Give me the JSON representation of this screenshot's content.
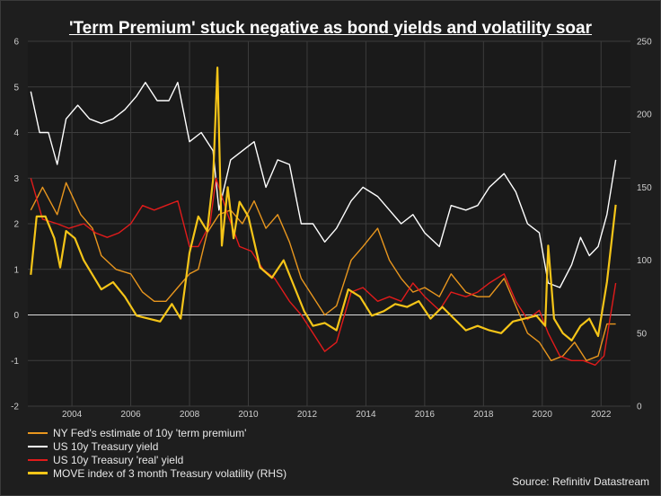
{
  "chart_data": {
    "type": "line",
    "title": "'Term Premium' stuck negative as bond yields and volatility soar",
    "xlim": [
      2002.5,
      2023.0
    ],
    "ylim_left": [
      -2,
      6
    ],
    "ylim_right": [
      0,
      250
    ],
    "x_ticks": [
      "2004",
      "2006",
      "2008",
      "2010",
      "2012",
      "2014",
      "2016",
      "2018",
      "2020",
      "2022"
    ],
    "y_ticks_left": [
      "-2",
      "-1",
      "0",
      "1",
      "2",
      "3",
      "4",
      "5",
      "6"
    ],
    "y_ticks_right": [
      "0",
      "50",
      "100",
      "150",
      "200",
      "250"
    ],
    "colors": {
      "background": "#1e1e1e",
      "plot": "#1a1a1a",
      "grid": "#3c3c3c",
      "zero": "#dcdcdc"
    },
    "series": [
      {
        "name": "NY Fed's estimate of 10y 'term premium'",
        "color": "#e8961e",
        "axis": "left",
        "x": [
          2002.6,
          2003.0,
          2003.5,
          2003.8,
          2004.3,
          2004.7,
          2005.0,
          2005.5,
          2006.0,
          2006.4,
          2006.8,
          2007.2,
          2007.6,
          2008.0,
          2008.3,
          2008.6,
          2009.0,
          2009.4,
          2009.8,
          2010.2,
          2010.6,
          2011.0,
          2011.4,
          2011.8,
          2012.2,
          2012.6,
          2013.0,
          2013.5,
          2013.9,
          2014.4,
          2014.8,
          2015.2,
          2015.6,
          2016.0,
          2016.5,
          2016.9,
          2017.4,
          2017.8,
          2018.2,
          2018.7,
          2019.1,
          2019.5,
          2019.9,
          2020.3,
          2020.7,
          2021.1,
          2021.5,
          2021.9,
          2022.2,
          2022.5
        ],
        "values": [
          2.3,
          2.8,
          2.2,
          2.9,
          2.2,
          1.9,
          1.3,
          1.0,
          0.9,
          0.5,
          0.3,
          0.3,
          0.6,
          0.9,
          1.0,
          1.8,
          2.2,
          2.3,
          2.0,
          2.5,
          1.9,
          2.2,
          1.6,
          0.8,
          0.4,
          0.0,
          0.2,
          1.2,
          1.5,
          1.9,
          1.2,
          0.8,
          0.5,
          0.6,
          0.4,
          0.9,
          0.5,
          0.4,
          0.4,
          0.8,
          0.2,
          -0.4,
          -0.6,
          -1.0,
          -0.9,
          -0.6,
          -1.0,
          -0.9,
          -0.2,
          -0.2
        ]
      },
      {
        "name": "US 10y Treasury yield",
        "color": "#ffffff",
        "axis": "left",
        "x": [
          2002.6,
          2002.9,
          2003.2,
          2003.5,
          2003.8,
          2004.2,
          2004.6,
          2005.0,
          2005.4,
          2005.8,
          2006.2,
          2006.5,
          2006.9,
          2007.3,
          2007.6,
          2008.0,
          2008.4,
          2008.8,
          2009.0,
          2009.4,
          2009.8,
          2010.2,
          2010.6,
          2011.0,
          2011.4,
          2011.8,
          2012.2,
          2012.6,
          2013.0,
          2013.5,
          2013.9,
          2014.4,
          2014.8,
          2015.2,
          2015.6,
          2016.0,
          2016.5,
          2016.9,
          2017.4,
          2017.8,
          2018.2,
          2018.7,
          2019.1,
          2019.5,
          2019.9,
          2020.2,
          2020.6,
          2021.0,
          2021.3,
          2021.6,
          2021.9,
          2022.2,
          2022.5
        ],
        "values": [
          4.9,
          4.0,
          4.0,
          3.3,
          4.3,
          4.6,
          4.3,
          4.2,
          4.3,
          4.5,
          4.8,
          5.1,
          4.7,
          4.7,
          5.1,
          3.8,
          4.0,
          3.6,
          2.3,
          3.4,
          3.6,
          3.8,
          2.8,
          3.4,
          3.3,
          2.0,
          2.0,
          1.6,
          1.9,
          2.5,
          2.8,
          2.6,
          2.3,
          2.0,
          2.2,
          1.8,
          1.5,
          2.4,
          2.3,
          2.4,
          2.8,
          3.1,
          2.7,
          2.0,
          1.8,
          0.7,
          0.6,
          1.1,
          1.7,
          1.3,
          1.5,
          2.2,
          3.4
        ]
      },
      {
        "name": "US 10y Treasury 'real' yield",
        "color": "#e11b1b",
        "axis": "left",
        "x": [
          2002.6,
          2003.0,
          2003.5,
          2003.9,
          2004.4,
          2004.8,
          2005.2,
          2005.6,
          2006.0,
          2006.4,
          2006.8,
          2007.2,
          2007.6,
          2008.0,
          2008.3,
          2008.7,
          2008.9,
          2009.3,
          2009.7,
          2010.1,
          2010.5,
          2010.9,
          2011.4,
          2011.8,
          2012.2,
          2012.6,
          2013.0,
          2013.5,
          2013.9,
          2014.4,
          2014.8,
          2015.2,
          2015.6,
          2016.0,
          2016.5,
          2016.9,
          2017.4,
          2017.8,
          2018.2,
          2018.7,
          2019.1,
          2019.5,
          2019.9,
          2020.2,
          2020.6,
          2021.0,
          2021.4,
          2021.8,
          2022.1,
          2022.5
        ],
        "values": [
          3.0,
          2.1,
          2.0,
          1.9,
          2.0,
          1.8,
          1.7,
          1.8,
          2.0,
          2.4,
          2.3,
          2.4,
          2.5,
          1.5,
          1.5,
          2.0,
          3.0,
          2.2,
          1.5,
          1.4,
          1.0,
          0.8,
          0.3,
          0.0,
          -0.4,
          -0.8,
          -0.6,
          0.5,
          0.6,
          0.3,
          0.4,
          0.3,
          0.7,
          0.4,
          0.1,
          0.5,
          0.4,
          0.5,
          0.7,
          0.9,
          0.3,
          -0.1,
          0.1,
          -0.4,
          -0.9,
          -1.0,
          -1.0,
          -1.1,
          -0.9,
          0.7
        ]
      },
      {
        "name": "MOVE index of 3 month Treasury volatility (RHS)",
        "color": "#f5c518",
        "axis": "right",
        "x": [
          2002.6,
          2002.8,
          2003.1,
          2003.4,
          2003.6,
          2003.8,
          2004.1,
          2004.4,
          2004.7,
          2005.0,
          2005.4,
          2005.8,
          2006.2,
          2006.6,
          2007.0,
          2007.4,
          2007.7,
          2008.0,
          2008.3,
          2008.6,
          2008.8,
          2008.95,
          2009.1,
          2009.3,
          2009.5,
          2009.7,
          2010.0,
          2010.4,
          2010.8,
          2011.2,
          2011.6,
          2011.9,
          2012.2,
          2012.6,
          2013.0,
          2013.4,
          2013.8,
          2014.2,
          2014.6,
          2015.0,
          2015.4,
          2015.8,
          2016.2,
          2016.6,
          2017.0,
          2017.4,
          2017.8,
          2018.2,
          2018.6,
          2019.0,
          2019.4,
          2019.8,
          2020.1,
          2020.2,
          2020.4,
          2020.7,
          2021.0,
          2021.3,
          2021.6,
          2021.9,
          2022.2,
          2022.5
        ],
        "values": [
          90,
          130,
          130,
          115,
          95,
          120,
          115,
          100,
          90,
          80,
          85,
          75,
          62,
          60,
          58,
          70,
          60,
          105,
          130,
          120,
          155,
          232,
          110,
          150,
          115,
          140,
          130,
          95,
          88,
          100,
          80,
          65,
          55,
          57,
          52,
          80,
          75,
          62,
          65,
          70,
          68,
          72,
          60,
          68,
          60,
          52,
          55,
          52,
          50,
          58,
          60,
          62,
          55,
          110,
          60,
          50,
          45,
          55,
          60,
          48,
          85,
          138
        ]
      }
    ]
  },
  "source": "Source: Refinitiv Datastream"
}
